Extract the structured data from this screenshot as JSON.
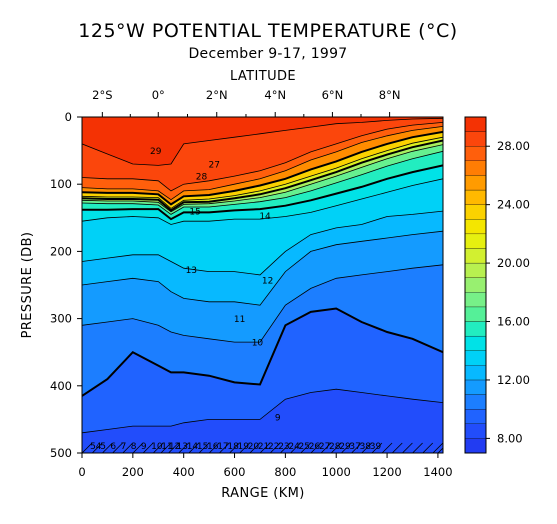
{
  "chart_data": {
    "type": "heatmap",
    "title": "125°W POTENTIAL TEMPERATURE (°C)",
    "subtitle": "December 9-17, 1997",
    "top_axis_label": "LATITUDE",
    "xlabel": "RANGE (KM)",
    "ylabel": "PRESSURE (DB)",
    "xlim": [
      0,
      1420
    ],
    "ylim": [
      0,
      500
    ],
    "y_inverted": true,
    "x_ticks": [
      "0",
      "200",
      "400",
      "600",
      "800",
      "1000",
      "1200",
      "1400"
    ],
    "y_ticks": [
      "0",
      "100",
      "200",
      "300",
      "400",
      "500"
    ],
    "lat_ticks": [
      {
        "label": "2°S",
        "range": 80
      },
      {
        "label": "0°",
        "range": 300
      },
      {
        "label": "2°N",
        "range": 530
      },
      {
        "label": "4°N",
        "range": 760
      },
      {
        "label": "6°N",
        "range": 985
      },
      {
        "label": "8°N",
        "range": 1210
      }
    ],
    "colorbar": {
      "min": 7,
      "max": 30,
      "step": 1,
      "tick_labels": [
        "8.00",
        "12.00",
        "16.00",
        "20.00",
        "24.00",
        "28.00"
      ],
      "tick_values": [
        8,
        12,
        16,
        20,
        24,
        28
      ],
      "color_stops": [
        {
          "v": 7,
          "c": "#2233ee"
        },
        {
          "v": 9,
          "c": "#2255ff"
        },
        {
          "v": 11,
          "c": "#1a8cff"
        },
        {
          "v": 13,
          "c": "#00c8ff"
        },
        {
          "v": 15,
          "c": "#00eadf"
        },
        {
          "v": 16,
          "c": "#44f0a0"
        },
        {
          "v": 18,
          "c": "#88f080"
        },
        {
          "v": 20,
          "c": "#c8f040"
        },
        {
          "v": 22,
          "c": "#f0f000"
        },
        {
          "v": 24,
          "c": "#ffc800"
        },
        {
          "v": 26,
          "c": "#ff8c00"
        },
        {
          "v": 28,
          "c": "#ff5010"
        },
        {
          "v": 30,
          "c": "#f02800"
        }
      ]
    },
    "isotherm_depths": {
      "x": [
        0,
        100,
        200,
        300,
        350,
        400,
        500,
        600,
        700,
        800,
        900,
        1000,
        1100,
        1200,
        1300,
        1420
      ],
      "levels": [
        {
          "t": 29,
          "depth": [
            40,
            55,
            70,
            72,
            70,
            40,
            35,
            30,
            25,
            20,
            15,
            10,
            8,
            5,
            3,
            2
          ]
        },
        {
          "t": 28,
          "depth": [
            90,
            92,
            92,
            95,
            110,
            100,
            95,
            88,
            80,
            68,
            52,
            40,
            28,
            18,
            12,
            8
          ]
        },
        {
          "t": 27,
          "depth": [
            105,
            107,
            107,
            110,
            123,
            110,
            108,
            100,
            92,
            80,
            64,
            52,
            38,
            28,
            20,
            14
          ]
        },
        {
          "t": 25,
          "depth": [
            112,
            113,
            113,
            115,
            130,
            118,
            116,
            110,
            102,
            92,
            78,
            66,
            52,
            40,
            30,
            22
          ]
        },
        {
          "t": 22,
          "depth": [
            118,
            119,
            119,
            120,
            136,
            124,
            122,
            117,
            110,
            100,
            88,
            76,
            62,
            50,
            39,
            30
          ]
        },
        {
          "t": 20,
          "depth": [
            121,
            122,
            122,
            123,
            139,
            127,
            126,
            121,
            115,
            106,
            94,
            82,
            68,
            56,
            45,
            35
          ]
        },
        {
          "t": 18,
          "depth": [
            124,
            125,
            125,
            127,
            141,
            130,
            129,
            125,
            120,
            112,
            100,
            88,
            75,
            62,
            51,
            41
          ]
        },
        {
          "t": 16,
          "depth": [
            128,
            129,
            129,
            131,
            145,
            134,
            134,
            130,
            126,
            120,
            110,
            98,
            86,
            73,
            62,
            51
          ]
        },
        {
          "t": 15,
          "depth": [
            138,
            138,
            137,
            137,
            152,
            142,
            142,
            139,
            137,
            132,
            124,
            114,
            104,
            92,
            82,
            72
          ]
        },
        {
          "t": 14,
          "depth": [
            155,
            150,
            148,
            150,
            160,
            155,
            155,
            152,
            152,
            148,
            142,
            132,
            122,
            112,
            102,
            92
          ]
        },
        {
          "t": 13,
          "depth": [
            215,
            210,
            205,
            205,
            215,
            225,
            230,
            230,
            235,
            200,
            175,
            165,
            160,
            148,
            145,
            140
          ]
        },
        {
          "t": 12,
          "depth": [
            250,
            245,
            240,
            245,
            260,
            270,
            275,
            275,
            280,
            230,
            200,
            190,
            185,
            180,
            175,
            170
          ]
        },
        {
          "t": 11,
          "depth": [
            310,
            305,
            300,
            310,
            320,
            325,
            330,
            335,
            335,
            280,
            255,
            240,
            235,
            230,
            225,
            220
          ]
        },
        {
          "t": 10,
          "depth": [
            415,
            390,
            350,
            370,
            380,
            380,
            385,
            395,
            398,
            310,
            290,
            285,
            305,
            320,
            330,
            350
          ]
        },
        {
          "t": 9,
          "depth": [
            470,
            465,
            460,
            460,
            460,
            455,
            450,
            450,
            450,
            420,
            410,
            405,
            410,
            415,
            420,
            425
          ]
        }
      ]
    },
    "contour_labels": [
      {
        "text": "29",
        "x": 290,
        "y": 55
      },
      {
        "text": "28",
        "x": 470,
        "y": 93
      },
      {
        "text": "27",
        "x": 520,
        "y": 75
      },
      {
        "text": "15",
        "x": 445,
        "y": 145
      },
      {
        "text": "14",
        "x": 720,
        "y": 152
      },
      {
        "text": "13",
        "x": 430,
        "y": 232
      },
      {
        "text": "12",
        "x": 730,
        "y": 248
      },
      {
        "text": "11",
        "x": 620,
        "y": 305
      },
      {
        "text": "10",
        "x": 690,
        "y": 340
      },
      {
        "text": "9",
        "x": 770,
        "y": 452
      }
    ],
    "station_markers": {
      "ranges": [
        20,
        60,
        100,
        140,
        180,
        220,
        260,
        300,
        330,
        360,
        400,
        440,
        480,
        520,
        560,
        600,
        640,
        680,
        720,
        760,
        800,
        840,
        880,
        920,
        960,
        1000,
        1040,
        1080,
        1120,
        1160,
        1200,
        1240,
        1280,
        1320,
        1360,
        1400,
        1420
      ],
      "labels": [
        "54",
        "5",
        "6",
        "7",
        "8",
        "9",
        "10",
        "11",
        "12",
        "13",
        "14",
        "15",
        "16",
        "17",
        "18",
        "19",
        "20",
        "21",
        "22",
        "23",
        "24",
        "25",
        "26",
        "27",
        "28",
        "29",
        "37",
        "38",
        "39"
      ]
    }
  }
}
